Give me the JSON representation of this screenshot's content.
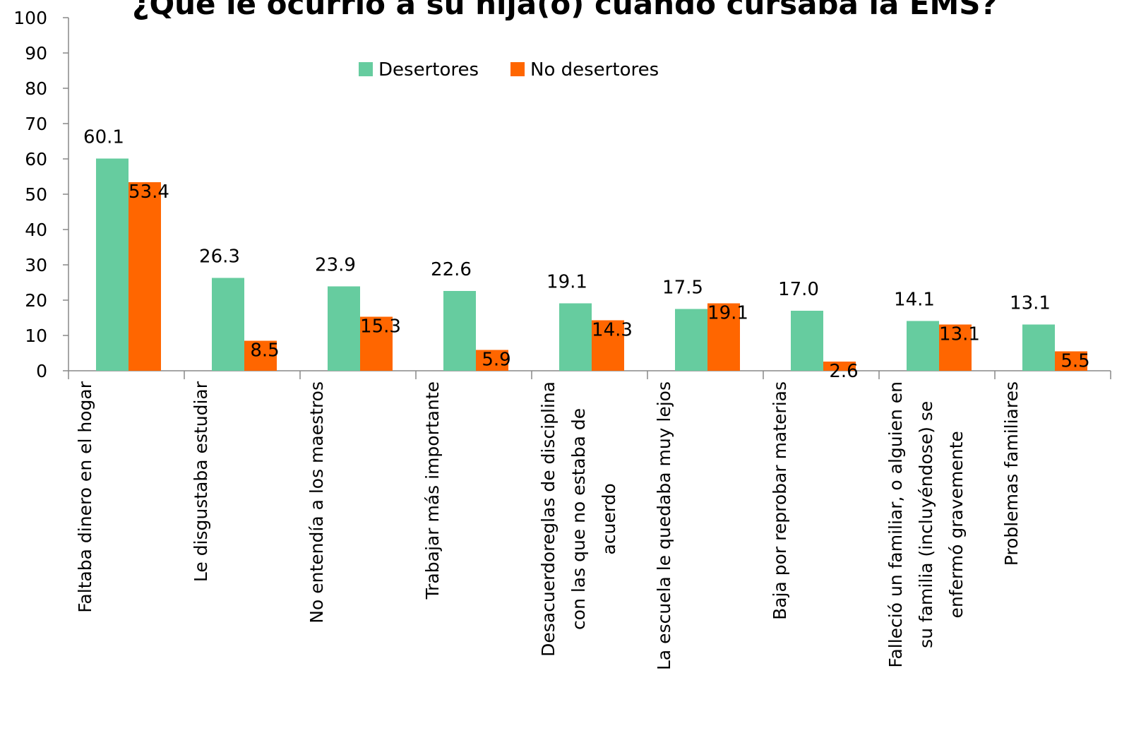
{
  "chart_data": {
    "type": "bar",
    "title": "¿Qué le ocurrió a su hija(o) cuando cursaba la EMS?",
    "categories": [
      [
        "Faltaba dinero en el hogar"
      ],
      [
        "Le disgustaba estudiar"
      ],
      [
        "No entendía a los maestros"
      ],
      [
        "Trabajar más importante"
      ],
      [
        "Desacuerdoreglas de disciplina",
        "con las que no estaba de",
        "acuerdo"
      ],
      [
        "La escuela le quedaba muy lejos"
      ],
      [
        "Baja por reprobar materias"
      ],
      [
        "Falleció un familiar, o alguien en",
        "su familia (incluyéndose) se",
        "enfermó gravemente"
      ],
      [
        "Problemas familiares"
      ]
    ],
    "series": [
      {
        "name": "Desertores",
        "color": "#66cc9f",
        "values": [
          60.1,
          26.3,
          23.9,
          22.6,
          19.1,
          17.5,
          17.0,
          14.1,
          13.1
        ],
        "value_labels": [
          "60.1",
          "26.3",
          "23.9",
          "22.6",
          "19.1",
          "17.5",
          "17.0",
          "14.1",
          "13.1"
        ]
      },
      {
        "name": "No desertores",
        "color": "#ff6600",
        "values": [
          53.4,
          8.5,
          15.3,
          5.9,
          14.3,
          19.1,
          2.6,
          13.1,
          5.5
        ],
        "value_labels": [
          "53.4",
          "8.5",
          "15.3",
          "5.9",
          "14.3",
          "19.1",
          "2.6",
          "13.1",
          "5.5"
        ]
      }
    ],
    "ylim": [
      0,
      100
    ],
    "yticks": [
      0,
      10,
      20,
      30,
      40,
      50,
      60,
      70,
      80,
      90,
      100
    ],
    "legend": "top"
  }
}
